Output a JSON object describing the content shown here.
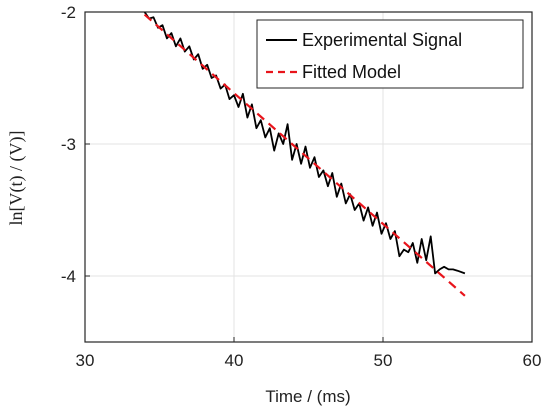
{
  "colors": {
    "experimental": "#000000",
    "fitted": "#e8141b",
    "grid": "#e3e3e3",
    "axes": "#262626"
  },
  "chart_data": {
    "type": "line",
    "xlabel": "Time / (ms)",
    "ylabel": "ln[V(t) / (V)]",
    "xlim": [
      30,
      60
    ],
    "ylim": [
      -4.5,
      -2
    ],
    "xticks": [
      30,
      40,
      50,
      60
    ],
    "yticks": [
      -4,
      -3,
      -2
    ],
    "xtick_labels": [
      "30",
      "40",
      "50",
      "60"
    ],
    "ytick_labels": [
      "-4",
      "-3",
      "-2"
    ],
    "grid": true,
    "legend_position": "top-right",
    "series": [
      {
        "name": "Experimental Signal",
        "style": "solid",
        "x": [
          34.0,
          34.3,
          34.6,
          34.9,
          35.2,
          35.5,
          35.8,
          36.1,
          36.4,
          36.7,
          37.0,
          37.3,
          37.6,
          37.9,
          38.2,
          38.5,
          38.8,
          39.1,
          39.4,
          39.7,
          40.0,
          40.3,
          40.6,
          40.9,
          41.2,
          41.5,
          41.8,
          42.1,
          42.4,
          42.7,
          43.0,
          43.3,
          43.6,
          43.9,
          44.2,
          44.5,
          44.8,
          45.1,
          45.4,
          45.7,
          46.0,
          46.3,
          46.6,
          46.9,
          47.2,
          47.5,
          47.8,
          48.1,
          48.4,
          48.7,
          49.0,
          49.3,
          49.6,
          49.9,
          50.2,
          50.5,
          50.8,
          51.1,
          51.4,
          51.7,
          52.0,
          52.3,
          52.6,
          52.9,
          53.2,
          53.5,
          53.8,
          54.1,
          54.4,
          54.7,
          55.0,
          55.5
        ],
        "y": [
          -2.0,
          -2.05,
          -2.04,
          -2.12,
          -2.1,
          -2.2,
          -2.16,
          -2.26,
          -2.2,
          -2.3,
          -2.26,
          -2.36,
          -2.32,
          -2.43,
          -2.4,
          -2.5,
          -2.48,
          -2.58,
          -2.55,
          -2.66,
          -2.63,
          -2.72,
          -2.62,
          -2.8,
          -2.7,
          -2.88,
          -2.82,
          -2.95,
          -2.88,
          -3.05,
          -2.92,
          -3.0,
          -2.85,
          -3.12,
          -3.0,
          -3.15,
          -3.02,
          -3.18,
          -3.1,
          -3.25,
          -3.2,
          -3.32,
          -3.22,
          -3.4,
          -3.3,
          -3.45,
          -3.38,
          -3.5,
          -3.45,
          -3.58,
          -3.48,
          -3.62,
          -3.52,
          -3.68,
          -3.6,
          -3.72,
          -3.66,
          -3.85,
          -3.8,
          -3.82,
          -3.75,
          -3.9,
          -3.72,
          -3.88,
          -3.7,
          -3.98,
          -3.95,
          -3.93,
          -3.95,
          -3.95,
          -3.96,
          -3.98
        ]
      },
      {
        "name": "Fitted Model",
        "style": "dashed",
        "x": [
          34.0,
          55.5
        ],
        "y": [
          -2.02,
          -4.15
        ]
      }
    ]
  }
}
